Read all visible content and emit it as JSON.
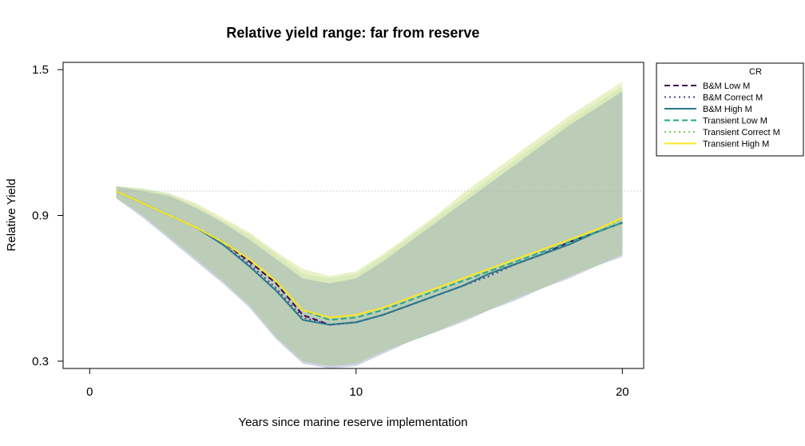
{
  "chart_data": {
    "type": "line",
    "title": "Relative yield range: far from reserve",
    "xlabel": "Years since marine reserve implementation",
    "ylabel": "Relative Yield",
    "xlim": [
      -1,
      20.8
    ],
    "ylim": [
      0.27,
      1.53
    ],
    "xticks": [
      0,
      10,
      20
    ],
    "xtick_labels": [
      "0",
      "10",
      "20"
    ],
    "yticks": [
      0.3,
      0.9,
      1.5
    ],
    "ytick_labels": [
      "0.3",
      "0.9",
      "1.5"
    ],
    "reference_line": {
      "y": 1.0,
      "style": "dotted",
      "color": "#aaaaaa"
    },
    "legend": {
      "title": "CR",
      "placement": "outside-right-top"
    },
    "x": [
      1,
      2,
      3,
      4,
      5,
      6,
      7,
      8,
      9,
      10,
      11,
      12,
      13,
      14,
      15,
      16,
      17,
      18,
      19,
      20
    ],
    "bands": [
      {
        "color": "#e9efc1",
        "lower": [
          0.98,
          0.91,
          0.82,
          0.74,
          0.66,
          0.56,
          0.43,
          0.32,
          0.3,
          0.31,
          0.35,
          0.39,
          0.43,
          0.48,
          0.52,
          0.57,
          0.61,
          0.66,
          0.7,
          0.75
        ],
        "upper": [
          1.02,
          1.01,
          0.99,
          0.95,
          0.89,
          0.83,
          0.75,
          0.68,
          0.65,
          0.67,
          0.74,
          0.82,
          0.9,
          0.99,
          1.07,
          1.15,
          1.23,
          1.31,
          1.38,
          1.45
        ]
      },
      {
        "color": "#d7e9b9",
        "lower": [
          0.98,
          0.9,
          0.81,
          0.73,
          0.65,
          0.55,
          0.42,
          0.31,
          0.29,
          0.3,
          0.35,
          0.39,
          0.43,
          0.47,
          0.52,
          0.56,
          0.61,
          0.65,
          0.7,
          0.74
        ],
        "upper": [
          1.02,
          1.01,
          0.99,
          0.94,
          0.88,
          0.82,
          0.74,
          0.66,
          0.64,
          0.66,
          0.73,
          0.81,
          0.89,
          0.97,
          1.05,
          1.13,
          1.21,
          1.29,
          1.36,
          1.43
        ]
      },
      {
        "color": "#c9cfe0",
        "lower": [
          0.97,
          0.89,
          0.8,
          0.71,
          0.62,
          0.52,
          0.39,
          0.29,
          0.27,
          0.28,
          0.33,
          0.38,
          0.42,
          0.46,
          0.51,
          0.55,
          0.6,
          0.64,
          0.69,
          0.73
        ],
        "upper": [
          1.01,
          1.0,
          0.98,
          0.93,
          0.87,
          0.8,
          0.72,
          0.64,
          0.62,
          0.64,
          0.71,
          0.79,
          0.87,
          0.95,
          1.03,
          1.11,
          1.19,
          1.27,
          1.34,
          1.41
        ]
      },
      {
        "color": "#b9cbb3",
        "lower": [
          0.97,
          0.9,
          0.81,
          0.72,
          0.63,
          0.53,
          0.4,
          0.3,
          0.28,
          0.29,
          0.34,
          0.38,
          0.42,
          0.47,
          0.51,
          0.56,
          0.6,
          0.65,
          0.69,
          0.74
        ],
        "upper": [
          1.02,
          1.0,
          0.98,
          0.93,
          0.87,
          0.8,
          0.72,
          0.64,
          0.62,
          0.64,
          0.71,
          0.79,
          0.87,
          0.95,
          1.03,
          1.11,
          1.19,
          1.27,
          1.34,
          1.41
        ]
      }
    ],
    "series": [
      {
        "name": "B&M Low M",
        "color": "#440154",
        "dash": "7,4",
        "values": [
          1.0,
          0.95,
          0.9,
          0.85,
          0.79,
          0.71,
          0.62,
          0.49,
          0.45,
          0.46,
          0.49,
          0.53,
          0.57,
          0.61,
          0.66,
          0.7,
          0.74,
          0.79,
          0.83,
          0.87
        ]
      },
      {
        "name": "B&M Correct M",
        "color": "#414487",
        "dash": "2,4",
        "values": [
          1.0,
          0.95,
          0.9,
          0.85,
          0.78,
          0.7,
          0.6,
          0.48,
          0.45,
          0.46,
          0.49,
          0.53,
          0.57,
          0.61,
          0.65,
          0.7,
          0.74,
          0.78,
          0.83,
          0.87
        ]
      },
      {
        "name": "B&M High M",
        "color": "#2a788e",
        "dash": "",
        "values": [
          1.0,
          0.95,
          0.9,
          0.85,
          0.78,
          0.69,
          0.59,
          0.47,
          0.45,
          0.46,
          0.49,
          0.53,
          0.57,
          0.61,
          0.66,
          0.7,
          0.74,
          0.78,
          0.83,
          0.87
        ]
      },
      {
        "name": "Transient Low M",
        "color": "#22a884",
        "dash": "7,4",
        "values": [
          1.0,
          0.95,
          0.9,
          0.85,
          0.79,
          0.72,
          0.63,
          0.51,
          0.47,
          0.48,
          0.51,
          0.55,
          0.59,
          0.63,
          0.67,
          0.71,
          0.75,
          0.79,
          0.83,
          0.87
        ]
      },
      {
        "name": "Transient Correct M",
        "color": "#7ad151",
        "dash": "2,4",
        "values": [
          1.0,
          0.95,
          0.9,
          0.85,
          0.79,
          0.72,
          0.63,
          0.51,
          0.48,
          0.49,
          0.52,
          0.56,
          0.6,
          0.64,
          0.68,
          0.72,
          0.76,
          0.8,
          0.84,
          0.88
        ]
      },
      {
        "name": "Transient High M",
        "color": "#fde725",
        "dash": "",
        "values": [
          1.0,
          0.95,
          0.9,
          0.85,
          0.79,
          0.72,
          0.63,
          0.51,
          0.48,
          0.49,
          0.52,
          0.56,
          0.6,
          0.64,
          0.68,
          0.72,
          0.76,
          0.8,
          0.84,
          0.89
        ]
      }
    ]
  }
}
